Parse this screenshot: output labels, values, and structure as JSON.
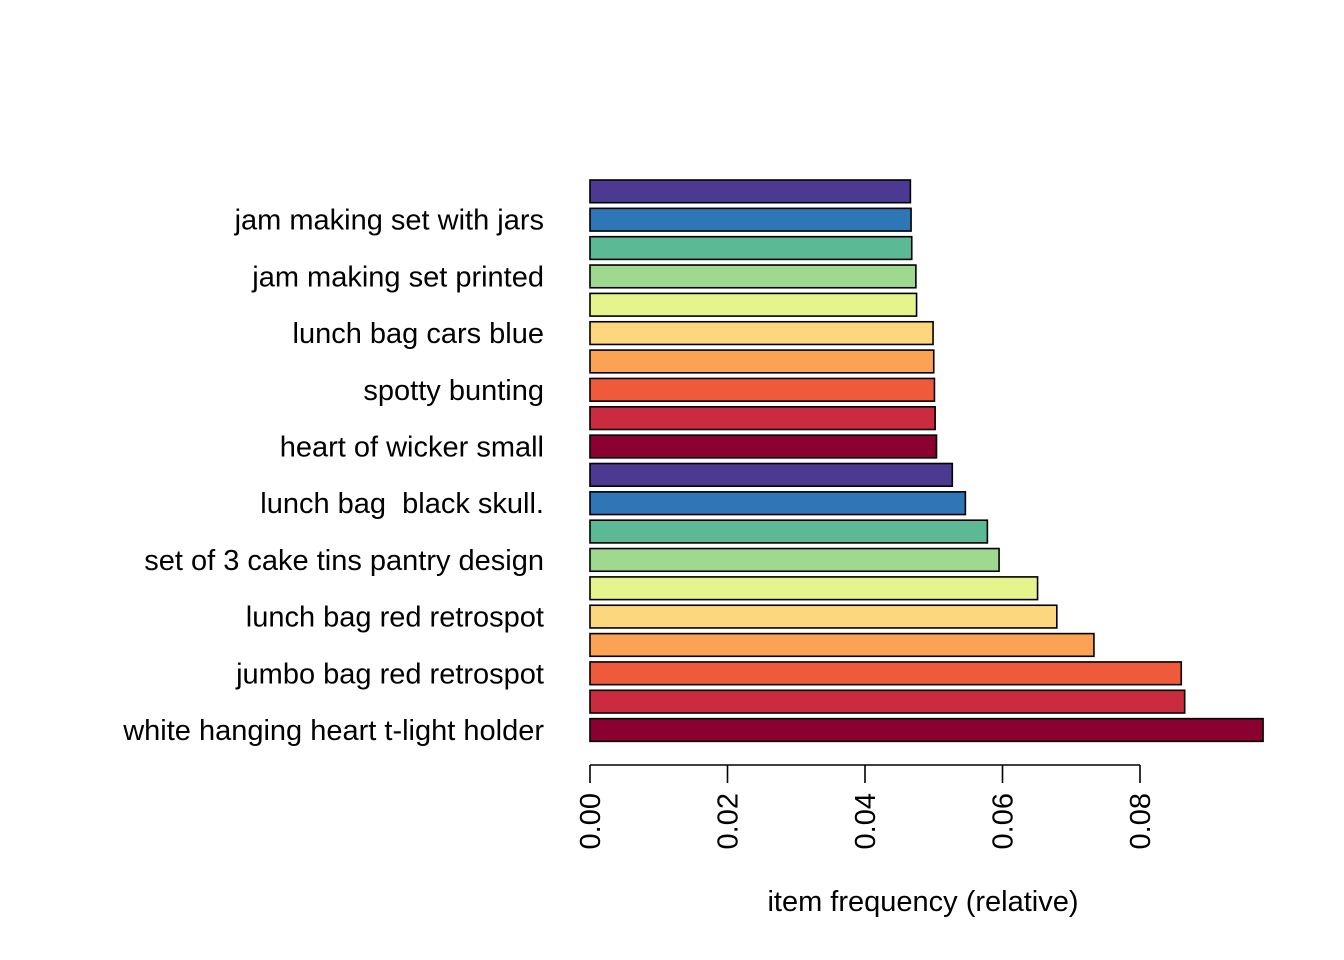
{
  "chart_data": {
    "type": "bar",
    "orientation": "horizontal",
    "title": "",
    "xlabel": "item frequency (relative)",
    "ylabel": "",
    "xlim": [
      0,
      0.098
    ],
    "x_ticks": [
      "0.00",
      "0.02",
      "0.04",
      "0.06",
      "0.08"
    ],
    "x_tick_values": [
      0,
      0.02,
      0.04,
      0.06,
      0.08
    ],
    "grid": false,
    "legend": "none",
    "categories": [
      "white hanging heart t-light holder",
      "",
      "jumbo bag red retrospot",
      "",
      "lunch bag red retrospot",
      "",
      "set of 3 cake tins pantry design",
      "",
      "lunch bag  black skull.",
      "",
      "heart of wicker small",
      "",
      "spotty bunting",
      "",
      "lunch bag cars blue",
      "",
      "jam making set printed",
      "",
      "jam making set with jars",
      ""
    ],
    "values": [
      0.0979,
      0.0865,
      0.086,
      0.0733,
      0.0679,
      0.0651,
      0.0595,
      0.0578,
      0.0546,
      0.0527,
      0.0504,
      0.0502,
      0.0501,
      0.05,
      0.0499,
      0.0475,
      0.0474,
      0.0468,
      0.0467,
      0.0466
    ],
    "colors": [
      "#8A0031",
      "#CA2B3E",
      "#EF5B3A",
      "#FBA254",
      "#FDD77E",
      "#E6F48E",
      "#9FD88F",
      "#5BBA95",
      "#2E76B5",
      "#4C3A92",
      "#8A0031",
      "#CA2B3E",
      "#EF5B3A",
      "#FBA254",
      "#FDD77E",
      "#E6F48E",
      "#9FD88F",
      "#5BBA95",
      "#2E76B5",
      "#4C3A92"
    ]
  }
}
